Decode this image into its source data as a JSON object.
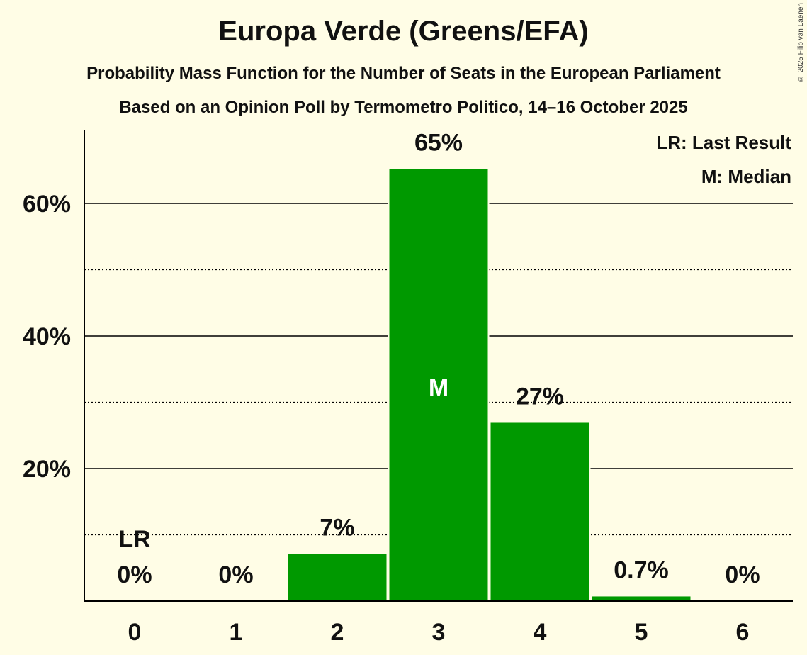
{
  "chart_data": {
    "type": "bar",
    "title": "Europa Verde (Greens/EFA)",
    "subtitle": "Probability Mass Function for the Number of Seats in the European Parliament",
    "subtitle2": "Based on an Opinion Poll by Termometro Politico, 14–16 October 2025",
    "categories": [
      "0",
      "1",
      "2",
      "3",
      "4",
      "5",
      "6"
    ],
    "values": [
      0,
      0,
      7.1,
      65.2,
      26.9,
      0.7,
      0
    ],
    "value_labels": [
      "0%",
      "0%",
      "7%",
      "65%",
      "27%",
      "0.7%",
      "0%"
    ],
    "ylim": [
      0,
      71
    ],
    "yticks": [
      20,
      40,
      60
    ],
    "ytick_labels": [
      "20%",
      "40%",
      "60%"
    ],
    "minor_gridlines": [
      10,
      30,
      50
    ],
    "last_result_index": 0,
    "last_result_marker": "LR",
    "median_index": 3,
    "median_marker": "M",
    "legend": [
      "LR: Last Result",
      "M: Median"
    ],
    "legend_position": "top-right",
    "bar_color": "#009900",
    "copyright": "© 2025 Filip van Laenen"
  }
}
